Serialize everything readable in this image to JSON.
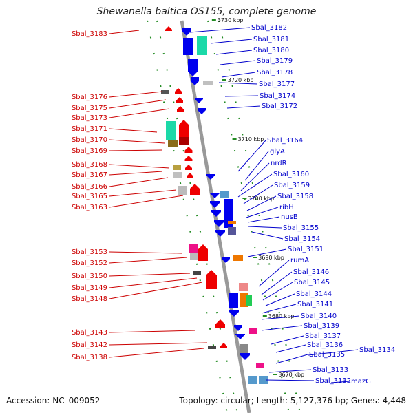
{
  "title": "Shewanella baltica OS155, complete genome",
  "footer": {
    "accession": "Accession: NC_009052",
    "summary": "Topology: circular; Length: 5,127,376 bp; Genes: 4,448"
  },
  "colors": {
    "left_label": "#cc0000",
    "right_label": "#0000cc",
    "minus_strand": "#ee0000",
    "plus_strand": "#0000ee",
    "backbone": "#999999",
    "ticks": "#228b22"
  },
  "kbp_ticks": [
    "3730 kbp",
    "3720 kbp",
    "3710 kbp",
    "3700 kbp",
    "3690 kbp",
    "3680 kbp",
    "3670 kbp"
  ],
  "left_labels": [
    "Sbal_3183",
    "Sbal_3176",
    "Sbal_3175",
    "Sbal_3173",
    "Sbal_3171",
    "Sbal_3170",
    "Sbal_3169",
    "Sbal_3168",
    "Sbal_3167",
    "Sbal_3166",
    "Sbal_3165",
    "Sbal_3163",
    "Sbal_3153",
    "Sbal_3152",
    "Sbal_3150",
    "Sbal_3149",
    "Sbal_3148",
    "Sbal_3143",
    "Sbal_3142",
    "Sbal_3138"
  ],
  "right_labels": [
    "Sbal_3182",
    "Sbal_3181",
    "Sbal_3180",
    "Sbal_3179",
    "Sbal_3178",
    "Sbal_3177",
    "Sbal_3174",
    "Sbal_3172",
    "Sbal_3164",
    "glyA",
    "nrdR",
    "Sbal_3160",
    "Sbal_3159",
    "Sbal_3158",
    "ribH",
    "nusB",
    "Sbal_3155",
    "Sbal_3154",
    "Sbal_3151",
    "rumA",
    "Sbal_3146",
    "Sbal_3145",
    "Sbal_3144",
    "Sbal_3141",
    "Sbal_3140",
    "Sbal_3139",
    "Sbal_3137",
    "Sbal_3136",
    "Sbal_3135",
    "Sbal_3134",
    "Sbal_3133",
    "Sbal_3132",
    "mazG"
  ]
}
